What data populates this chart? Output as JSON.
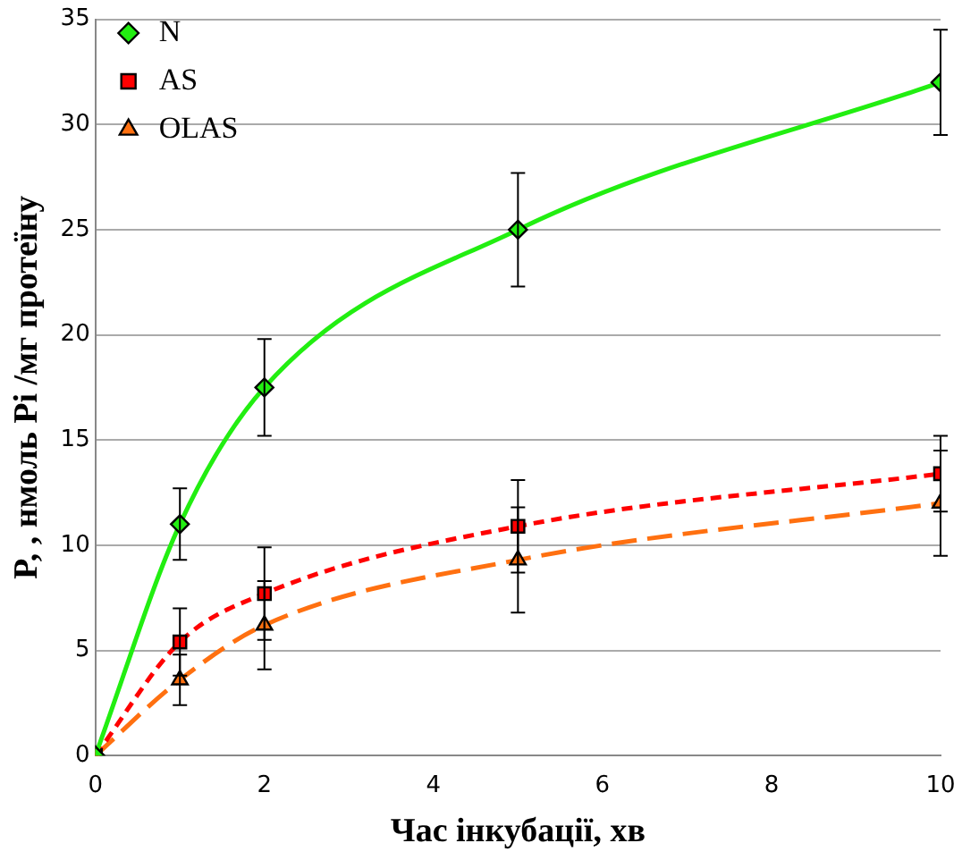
{
  "chart_data": {
    "type": "line",
    "xlabel": "Час інкубації, хв",
    "ylabel": "P, , нмоль Pi /мг протеїну",
    "x": [
      0,
      1,
      2,
      5,
      10
    ],
    "series": [
      {
        "name": "N",
        "color": "#22ee11",
        "values": [
          0,
          11,
          17.5,
          25,
          32
        ],
        "errors": [
          null,
          1.7,
          2.3,
          2.7,
          2.5
        ],
        "marker": "diamond",
        "line_style": "solid"
      },
      {
        "name": "AS",
        "color": "#ff0000",
        "values": [
          0,
          5.4,
          7.7,
          10.9,
          13.4
        ],
        "errors": [
          null,
          1.6,
          2.2,
          2.2,
          1.8
        ],
        "marker": "square",
        "line_style": "dotted"
      },
      {
        "name": "OLAS",
        "color": "#ff7010",
        "values": [
          0,
          3.6,
          6.2,
          9.3,
          12
        ],
        "errors": [
          null,
          1.2,
          2.1,
          2.5,
          2.5
        ],
        "marker": "triangle",
        "line_style": "dashed"
      }
    ],
    "xlim": [
      0,
      10
    ],
    "xticks": [
      0,
      2,
      4,
      6,
      8,
      10
    ],
    "ylim": [
      0,
      35
    ],
    "yticks": [
      0,
      5,
      10,
      15,
      20,
      25,
      30,
      35
    ],
    "grid": "y",
    "legend": "top left"
  }
}
